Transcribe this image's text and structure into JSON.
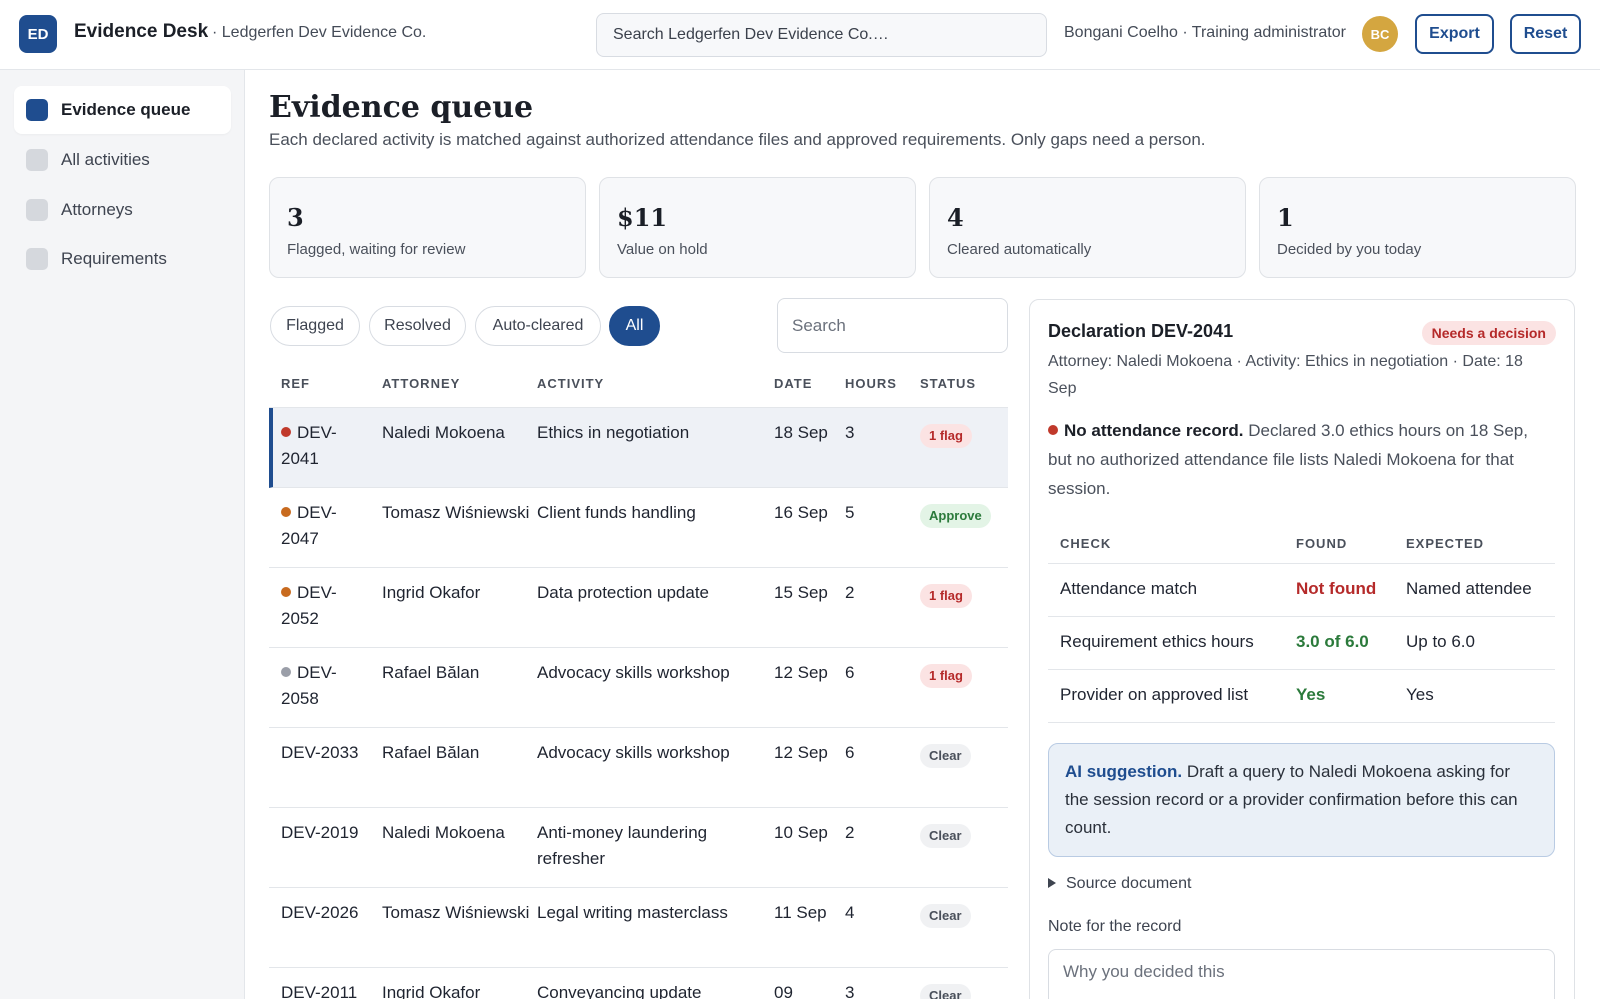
{
  "header": {
    "logo_text": "ED",
    "app_name": "Evidence Desk",
    "org": "· Ledgerfen Dev Evidence Co.",
    "search_placeholder": "Search Ledgerfen Dev Evidence Co.…",
    "user": "Bongani Coelho · Training administrator",
    "avatar_initials": "BC",
    "export_label": "Export",
    "reset_label": "Reset"
  },
  "sidebar": {
    "items": [
      {
        "label": "Evidence queue",
        "active": true
      },
      {
        "label": "All activities",
        "active": false
      },
      {
        "label": "Attorneys",
        "active": false
      },
      {
        "label": "Requirements",
        "active": false
      }
    ]
  },
  "main": {
    "title": "Evidence queue",
    "subtitle": "Each declared activity is matched against authorized attendance files and approved requirements. Only gaps need a person.",
    "stats": [
      {
        "value": "3",
        "label": "Flagged, waiting for review"
      },
      {
        "value": "$11",
        "label": "Value on hold"
      },
      {
        "value": "4",
        "label": "Cleared automatically"
      },
      {
        "value": "1",
        "label": "Decided by you today"
      }
    ],
    "filters": [
      "Flagged",
      "Resolved",
      "Auto-cleared",
      "All"
    ],
    "active_filter": "All",
    "search_placeholder": "Search"
  },
  "table": {
    "headers": [
      "REF",
      "ATTORNEY",
      "ACTIVITY",
      "DATE",
      "HOURS",
      "STATUS"
    ],
    "rows": [
      {
        "ref": "DEV-2041",
        "attorney": "Naledi Mokoena",
        "activity": "Ethics in negotiation",
        "date": "18 Sep",
        "hours": "3",
        "status": "1 flag",
        "status_type": "flag",
        "dot": "#c0392b",
        "selected": true
      },
      {
        "ref": "DEV-2047",
        "attorney": "Tomasz Wiśniewski",
        "activity": "Client funds handling",
        "date": "16 Sep",
        "hours": "5",
        "status": "Approve",
        "status_type": "approve",
        "dot": "#c86a1e",
        "selected": false
      },
      {
        "ref": "DEV-2052",
        "attorney": "Ingrid Okafor",
        "activity": "Data protection update",
        "date": "15 Sep",
        "hours": "2",
        "status": "1 flag",
        "status_type": "flag",
        "dot": "#c86a1e",
        "selected": false
      },
      {
        "ref": "DEV-2058",
        "attorney": "Rafael Bălan",
        "activity": "Advocacy skills workshop",
        "date": "12 Sep",
        "hours": "6",
        "status": "1 flag",
        "status_type": "flag",
        "dot": "#9a9ea8",
        "selected": false
      },
      {
        "ref": "DEV-2033",
        "attorney": "Rafael Bălan",
        "activity": "Advocacy skills workshop",
        "date": "12 Sep",
        "hours": "6",
        "status": "Clear",
        "status_type": "clear",
        "dot": "",
        "selected": false
      },
      {
        "ref": "DEV-2019",
        "attorney": "Naledi Mokoena",
        "activity": "Anti-money laundering refresher",
        "date": "10 Sep",
        "hours": "2",
        "status": "Clear",
        "status_type": "clear",
        "dot": "",
        "selected": false
      },
      {
        "ref": "DEV-2026",
        "attorney": "Tomasz Wiśniewski",
        "activity": "Legal writing masterclass",
        "date": "11 Sep",
        "hours": "4",
        "status": "Clear",
        "status_type": "clear",
        "dot": "",
        "selected": false
      },
      {
        "ref": "DEV-2011",
        "attorney": "Ingrid Okafor",
        "activity": "Conveyancing update",
        "date": "09",
        "hours": "3",
        "status": "Clear",
        "status_type": "clear",
        "dot": "",
        "selected": false
      }
    ]
  },
  "detail": {
    "title": "Declaration DEV-2041",
    "badge": "Needs a decision",
    "meta": "Attorney: Naledi Mokoena · Activity: Ethics in negotiation · Date: 18 Sep",
    "issue_title": "No attendance record.",
    "issue_text": "Declared 3.0 ethics hours on 18 Sep, but no authorized attendance file lists Naledi Mokoena for that session.",
    "issue_dot": "#c0392b",
    "check_headers": [
      "CHECK",
      "FOUND",
      "EXPECTED"
    ],
    "checks": [
      {
        "check": "Attendance match",
        "found": "Not found",
        "expected": "Named attendee",
        "tone": "bad"
      },
      {
        "check": "Requirement ethics hours",
        "found": "3.0 of 6.0",
        "expected": "Up to 6.0",
        "tone": "good"
      },
      {
        "check": "Provider on approved list",
        "found": "Yes",
        "expected": "Yes",
        "tone": "good"
      }
    ],
    "ai_label": "AI suggestion.",
    "ai_text": "Draft a query to Naledi Mokoena asking for the session record or a provider confirmation before this can count.",
    "source_label": "Source document",
    "note_label": "Note for the record",
    "note_placeholder": "Why you decided this"
  }
}
